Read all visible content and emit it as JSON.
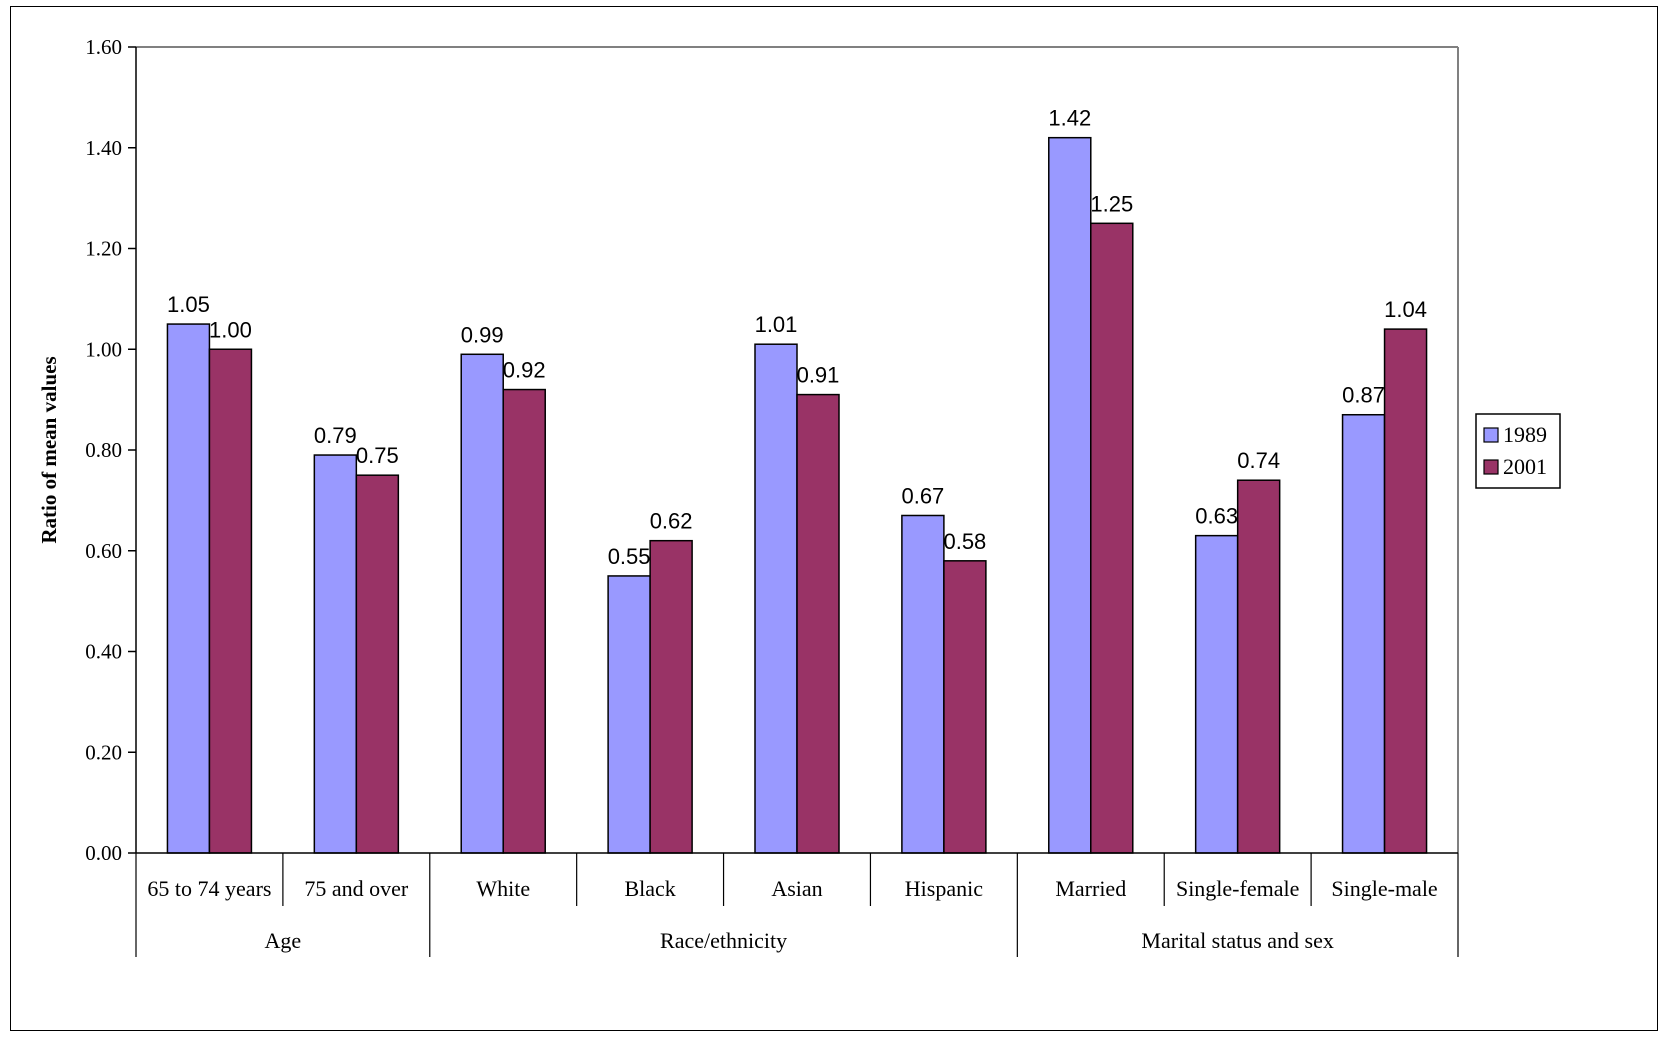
{
  "chart_data": {
    "type": "bar",
    "title": "",
    "xlabel": "",
    "ylabel": "Ratio of mean values",
    "ylim": [
      0,
      1.6
    ],
    "yticks": [
      "0.00",
      "0.20",
      "0.40",
      "0.60",
      "0.80",
      "1.00",
      "1.20",
      "1.40",
      "1.60"
    ],
    "grid": false,
    "legend_position": "right",
    "categories": [
      "65 to 74 years",
      "75 and over",
      "White",
      "Black",
      "Asian",
      "Hispanic",
      "Married",
      "Single-female",
      "Single-male"
    ],
    "groups": [
      {
        "label": "Age",
        "span": 2
      },
      {
        "label": "Race/ethnicity",
        "span": 4
      },
      {
        "label": "Marital status and sex",
        "span": 3
      }
    ],
    "series": [
      {
        "name": "1989",
        "color": "#9999ff",
        "values": [
          1.05,
          0.79,
          0.99,
          0.55,
          1.01,
          0.67,
          1.42,
          0.63,
          0.87
        ],
        "labels": [
          "1.05",
          "0.79",
          "0.99",
          "0.55",
          "1.01",
          "0.67",
          "1.42",
          "0.63",
          "0.87"
        ]
      },
      {
        "name": "2001",
        "color": "#993366",
        "values": [
          1.0,
          0.75,
          0.92,
          0.62,
          0.91,
          0.58,
          1.25,
          0.74,
          1.04
        ],
        "labels": [
          "1.00",
          "0.75",
          "0.92",
          "0.62",
          "0.91",
          "0.58",
          "1.25",
          "0.74",
          "1.04"
        ]
      }
    ]
  }
}
